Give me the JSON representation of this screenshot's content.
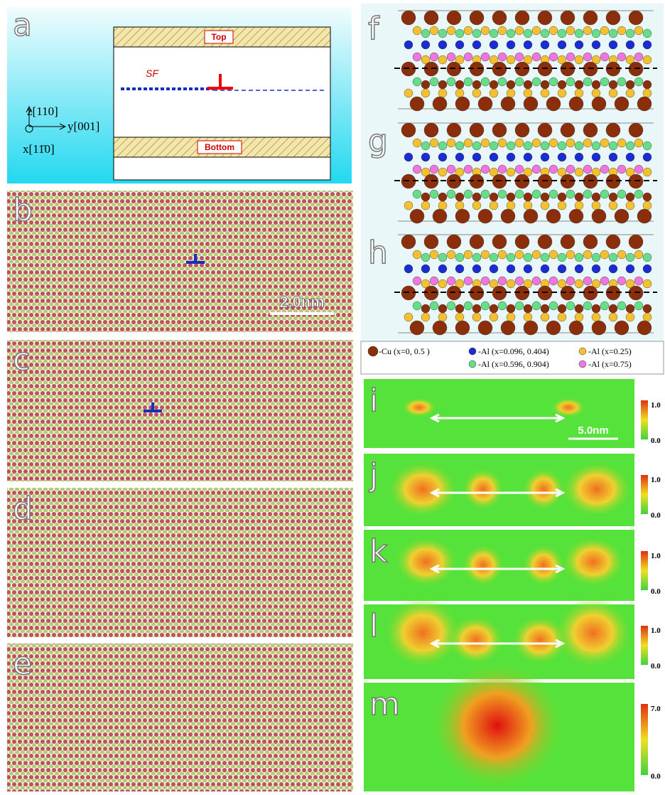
{
  "panel_a": {
    "label": "a",
    "top": "Top",
    "bottom": "Bottom",
    "sf": "SF",
    "axis_z": "z[110]",
    "axis_y": "y[001]",
    "axis_x": "x[11̄0]"
  },
  "panels_md": {
    "b": {
      "label": "b",
      "scale_bar": "2.0nm"
    },
    "c": {
      "label": "c"
    },
    "d": {
      "label": "d"
    },
    "e": {
      "label": "e"
    }
  },
  "panels_fgh": {
    "labels": [
      "f",
      "g",
      "h"
    ],
    "legend": [
      "-Cu (x=0,  0.5 )",
      "-Al (x=0.096,  0.404)",
      "-Al (x=0.25)",
      "-Al (x=0.596,  0.904)",
      "-Al (x=0.75)"
    ]
  },
  "panels_im": {
    "labels": [
      "i",
      "j",
      "k",
      "l",
      "m"
    ],
    "scale_bar": "5.0nm",
    "colorbars": [
      {
        "max": "1.0",
        "min": "0.0"
      },
      {
        "max": "1.0",
        "min": "0.0"
      },
      {
        "max": "1.0",
        "min": "0.0"
      },
      {
        "max": "1.0",
        "min": "0.0"
      },
      {
        "max": "7.0",
        "min": "0.0"
      }
    ]
  }
}
